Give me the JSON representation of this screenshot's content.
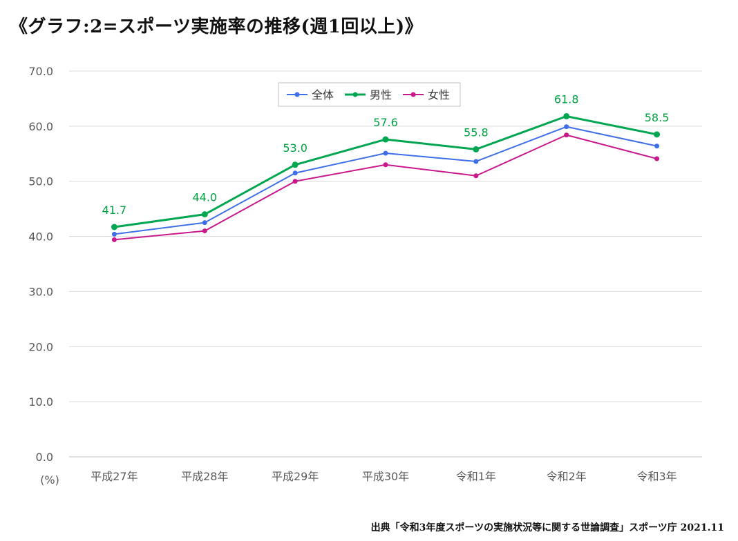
{
  "title": "《グラフ:2=スポーツ実施率の推移(週1回以上)》",
  "source": "出典「令和3年度スポーツの実施状況等に関する世論調査」スポーツ庁 2021.11",
  "chart_data": {
    "type": "line",
    "title": "《グラフ:2=スポーツ実施率の推移(週1回以上)》",
    "ylabel": "(%)",
    "ylim": [
      0,
      70
    ],
    "yticks": [
      "0.0",
      "10.0",
      "20.0",
      "30.0",
      "40.0",
      "50.0",
      "60.0",
      "70.0"
    ],
    "categories": [
      "平成27年",
      "平成28年",
      "平成29年",
      "平成30年",
      "令和1年",
      "令和2年",
      "令和3年"
    ],
    "series": [
      {
        "name": "全体",
        "color": "#3f6fe8",
        "values": [
          40.4,
          42.5,
          51.5,
          55.1,
          53.6,
          59.9,
          56.4
        ]
      },
      {
        "name": "男性",
        "color": "#00a650",
        "values": [
          41.7,
          44.0,
          53.0,
          57.6,
          55.8,
          61.8,
          58.5
        ],
        "labels": [
          "41.7",
          "44.0",
          "53.0",
          "57.6",
          "55.8",
          "61.8",
          "58.5"
        ]
      },
      {
        "name": "女性",
        "color": "#c8188c",
        "values": [
          39.4,
          41.0,
          50.0,
          53.0,
          51.0,
          58.4,
          54.1
        ]
      }
    ],
    "legend": "top-center"
  }
}
